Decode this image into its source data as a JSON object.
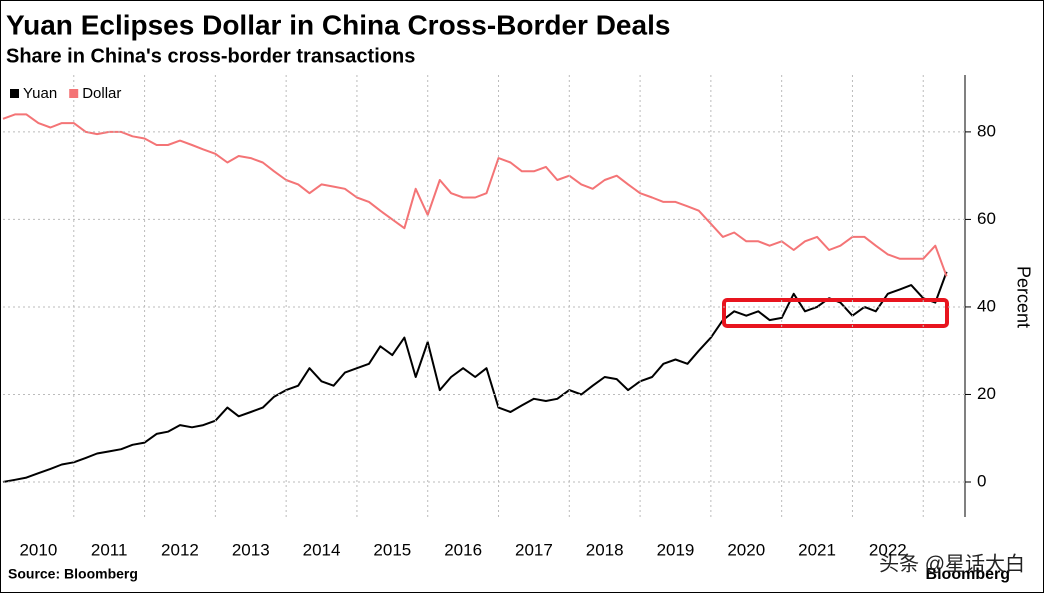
{
  "chart_data": {
    "type": "line",
    "title": "Yuan Eclipses Dollar in China Cross-Border Deals",
    "subtitle": "Share in China's cross-border transactions",
    "y_label": "Percent",
    "source": "Source: Bloomberg",
    "brand": "Bloomberg",
    "watermark": "头条 @星话大白",
    "x": [
      2010,
      2010.17,
      2010.33,
      2010.5,
      2010.67,
      2010.83,
      2011,
      2011.17,
      2011.33,
      2011.5,
      2011.67,
      2011.83,
      2012,
      2012.17,
      2012.33,
      2012.5,
      2012.67,
      2012.83,
      2013,
      2013.17,
      2013.33,
      2013.5,
      2013.67,
      2013.83,
      2014,
      2014.17,
      2014.33,
      2014.5,
      2014.67,
      2014.83,
      2015,
      2015.17,
      2015.33,
      2015.5,
      2015.67,
      2015.83,
      2016,
      2016.17,
      2016.33,
      2016.5,
      2016.67,
      2016.83,
      2017,
      2017.17,
      2017.33,
      2017.5,
      2017.67,
      2017.83,
      2018,
      2018.17,
      2018.33,
      2018.5,
      2018.67,
      2018.83,
      2019,
      2019.17,
      2019.33,
      2019.5,
      2019.67,
      2019.83,
      2020,
      2020.17,
      2020.33,
      2020.5,
      2020.67,
      2020.83,
      2021,
      2021.17,
      2021.33,
      2021.5,
      2021.67,
      2021.83,
      2022,
      2022.17,
      2022.33,
      2022.5,
      2022.67,
      2022.83,
      2023,
      2023.17,
      2023.33
    ],
    "series": [
      {
        "name": "Yuan",
        "color": "#000000",
        "values": [
          0,
          0.5,
          1,
          2,
          3,
          4,
          4.5,
          5.5,
          6.5,
          7,
          7.5,
          8.5,
          9,
          11,
          11.5,
          13,
          12.5,
          13,
          14,
          17,
          15,
          16,
          17,
          19.5,
          21,
          22,
          26,
          23,
          22,
          25,
          26,
          27,
          31,
          29,
          33,
          24,
          32,
          21,
          24,
          26,
          24,
          26,
          17,
          16,
          17.5,
          19,
          18.5,
          19,
          21,
          20,
          22,
          24,
          23.5,
          21,
          23,
          24,
          27,
          28,
          27,
          30,
          33,
          37,
          39,
          38,
          39,
          37,
          37.5,
          43,
          39,
          40,
          42,
          41,
          38,
          40,
          39,
          43,
          44,
          45,
          42,
          41,
          48
        ]
      },
      {
        "name": "Dollar",
        "color": "#f47476",
        "values": [
          83,
          84,
          84,
          82,
          81,
          82,
          82,
          80,
          79.5,
          80,
          80,
          79,
          78.5,
          77,
          77,
          78,
          77,
          76,
          75,
          73,
          74.5,
          74,
          73,
          71,
          69,
          68,
          66,
          68,
          67.5,
          67,
          65,
          64,
          62,
          60,
          58,
          67,
          61,
          69,
          66,
          65,
          65,
          66,
          74,
          73,
          71,
          71,
          72,
          69,
          70,
          68,
          67,
          69,
          70,
          68,
          66,
          65,
          64,
          64,
          63,
          62,
          59,
          56,
          57,
          55,
          55,
          54,
          55,
          53,
          55,
          56,
          53,
          54,
          56,
          56,
          54,
          52,
          51,
          51,
          51,
          54,
          47
        ]
      }
    ],
    "xlim": [
      2010,
      2023.59
    ],
    "xticks": [
      {
        "value": 2010.5,
        "label": "2010"
      },
      {
        "value": 2011.5,
        "label": "2011"
      },
      {
        "value": 2012.5,
        "label": "2012"
      },
      {
        "value": 2013.5,
        "label": "2013"
      },
      {
        "value": 2014.5,
        "label": "2014"
      },
      {
        "value": 2015.5,
        "label": "2015"
      },
      {
        "value": 2016.5,
        "label": "2016"
      },
      {
        "value": 2017.5,
        "label": "2017"
      },
      {
        "value": 2018.5,
        "label": "2018"
      },
      {
        "value": 2019.5,
        "label": "2019"
      },
      {
        "value": 2020.5,
        "label": "2020"
      },
      {
        "value": 2021.5,
        "label": "2021"
      },
      {
        "value": 2022.5,
        "label": "2022"
      }
    ],
    "xgrid": [
      2011,
      2012,
      2013,
      2014,
      2015,
      2016,
      2017,
      2018,
      2019,
      2020,
      2021,
      2022,
      2023
    ],
    "ylim": [
      -8,
      93
    ],
    "yticks": [
      0,
      20,
      40,
      60,
      80
    ],
    "grid": true,
    "legend": "top-left"
  }
}
